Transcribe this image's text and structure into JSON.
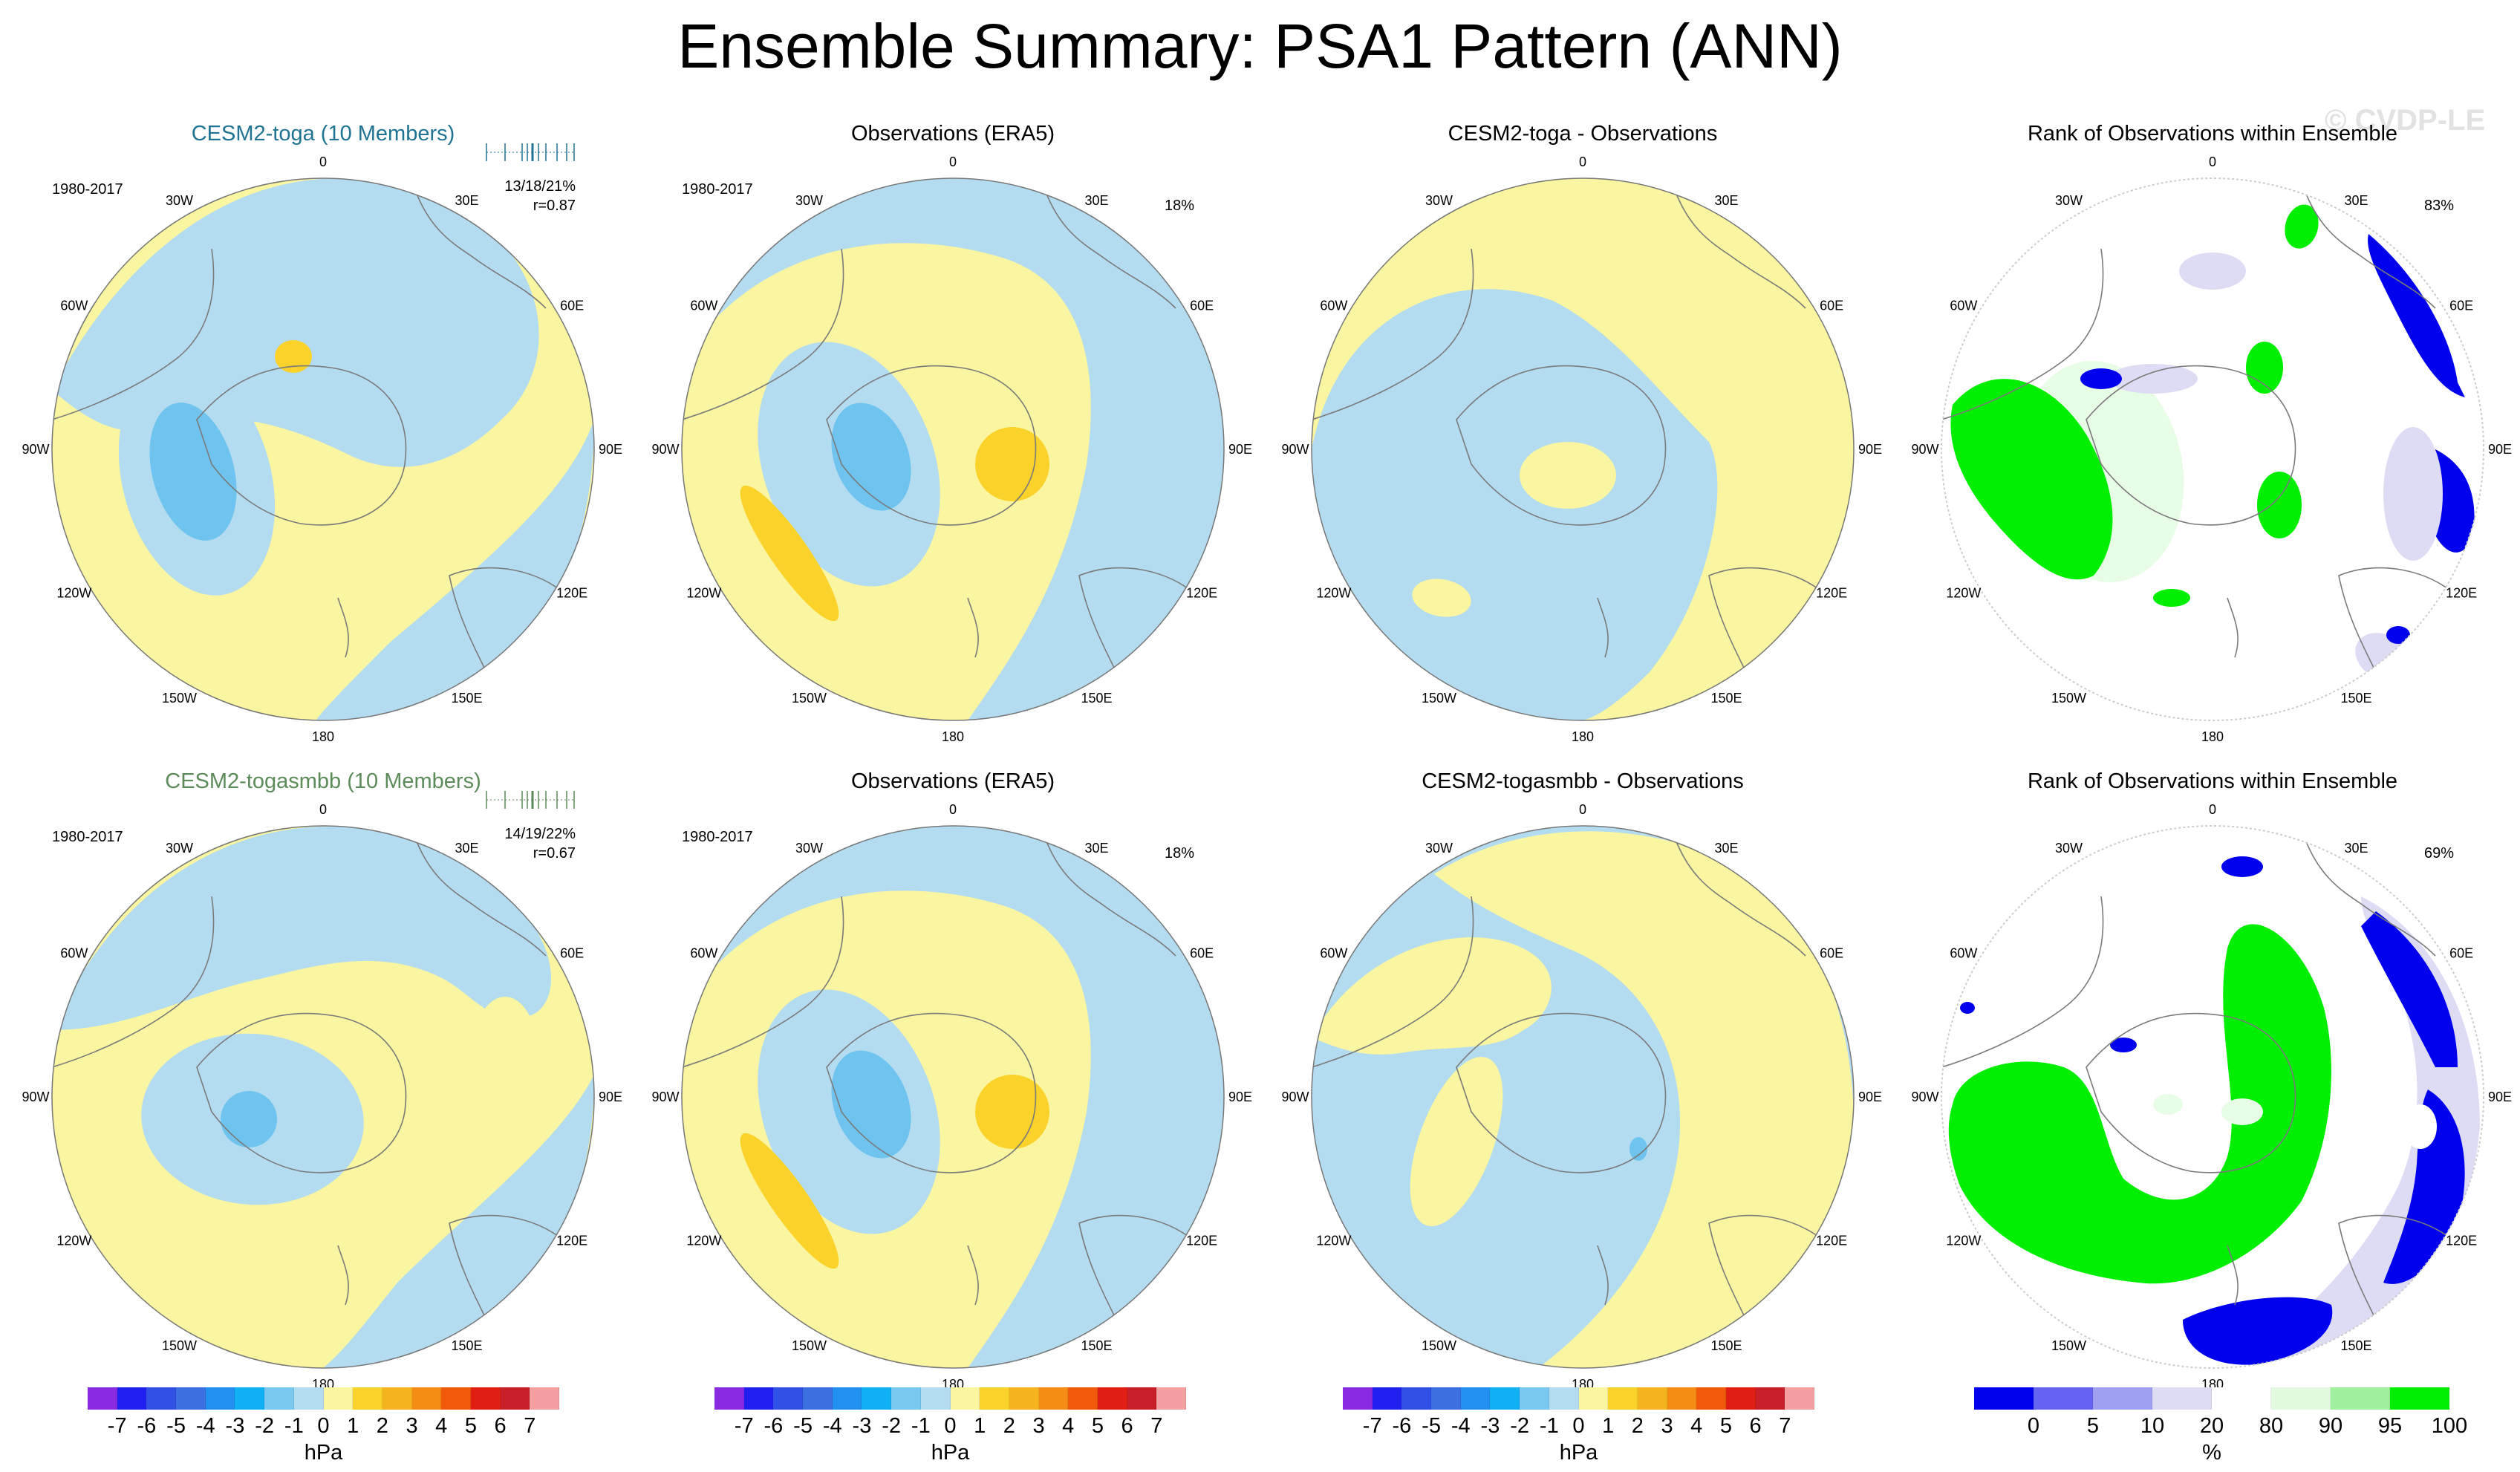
{
  "title": "Ensemble Summary: PSA1 Pattern (ANN)",
  "watermark": "© CVDP-LE",
  "longitude_labels": [
    "0",
    "30E",
    "60E",
    "90E",
    "120E",
    "150E",
    "180",
    "150W",
    "120W",
    "90W",
    "60W",
    "30W"
  ],
  "colors": {
    "blue_weak": "#b4dcf0",
    "blue_mid": "#6ec4ee",
    "yellow_weak": "#faf5a0",
    "orange": "#fad22a",
    "orange_deep": "#f5be1e",
    "rank_green": "#00ee00",
    "rank_green_light": "#e8fde6",
    "rank_blue": "#0000ee",
    "rank_lavender": "#dedcf5",
    "coast": "#7a7a7a"
  },
  "panels": [
    {
      "id": "r1c1",
      "title": "CESM2-toga (10 Members)",
      "title_color": "toga",
      "period": "1980-2017",
      "stats": "13/18/21%",
      "corr": "r=0.87",
      "percent": ""
    },
    {
      "id": "r1c2",
      "title": "Observations (ERA5)",
      "title_color": "",
      "period": "1980-2017",
      "stats": "",
      "corr": "",
      "percent": "18%"
    },
    {
      "id": "r1c3",
      "title": "CESM2-toga - Observations",
      "title_color": "",
      "period": "",
      "stats": "",
      "corr": "",
      "percent": ""
    },
    {
      "id": "r1c4",
      "title": "Rank of Observations within Ensemble",
      "title_color": "",
      "period": "",
      "stats": "",
      "corr": "",
      "percent": "83%"
    },
    {
      "id": "r2c1",
      "title": "CESM2-togasmbb (10 Members)",
      "title_color": "togasmbb",
      "period": "1980-2017",
      "stats": "14/19/22%",
      "corr": "r=0.67",
      "percent": ""
    },
    {
      "id": "r2c2",
      "title": "Observations (ERA5)",
      "title_color": "",
      "period": "1980-2017",
      "stats": "",
      "corr": "",
      "percent": "18%"
    },
    {
      "id": "r2c3",
      "title": "CESM2-togasmbb - Observations",
      "title_color": "",
      "period": "",
      "stats": "",
      "corr": "",
      "percent": ""
    },
    {
      "id": "r2c4",
      "title": "Rank of Observations within Ensemble",
      "title_color": "",
      "period": "",
      "stats": "",
      "corr": "",
      "percent": "69%"
    }
  ],
  "colorbars": {
    "hpa": {
      "unit": "hPa",
      "ticks": [
        "-7",
        "-6",
        "-5",
        "-4",
        "-3",
        "-2",
        "-1",
        "0",
        "1",
        "2",
        "3",
        "4",
        "5",
        "6",
        "7"
      ],
      "colors": [
        "#8a2be2",
        "#2020ee",
        "#3050e6",
        "#3c70e0",
        "#2290f0",
        "#10b0f5",
        "#78c8f0",
        "#b4dcf0",
        "#faf5a0",
        "#fad22a",
        "#f5b41e",
        "#f58c14",
        "#f05a0a",
        "#e01e14",
        "#c81e2a",
        "#f5a0a0"
      ]
    },
    "rank": {
      "unit": "%",
      "ticks": [
        "0",
        "5",
        "10",
        "20",
        "80",
        "90",
        "95",
        "100"
      ],
      "colors": [
        "#0000ee",
        "#6464f0",
        "#a0a0f0",
        "#dedcf5",
        "#ffffff",
        "#e2fbe0",
        "#a0f0a0",
        "#00ee00"
      ]
    }
  }
}
